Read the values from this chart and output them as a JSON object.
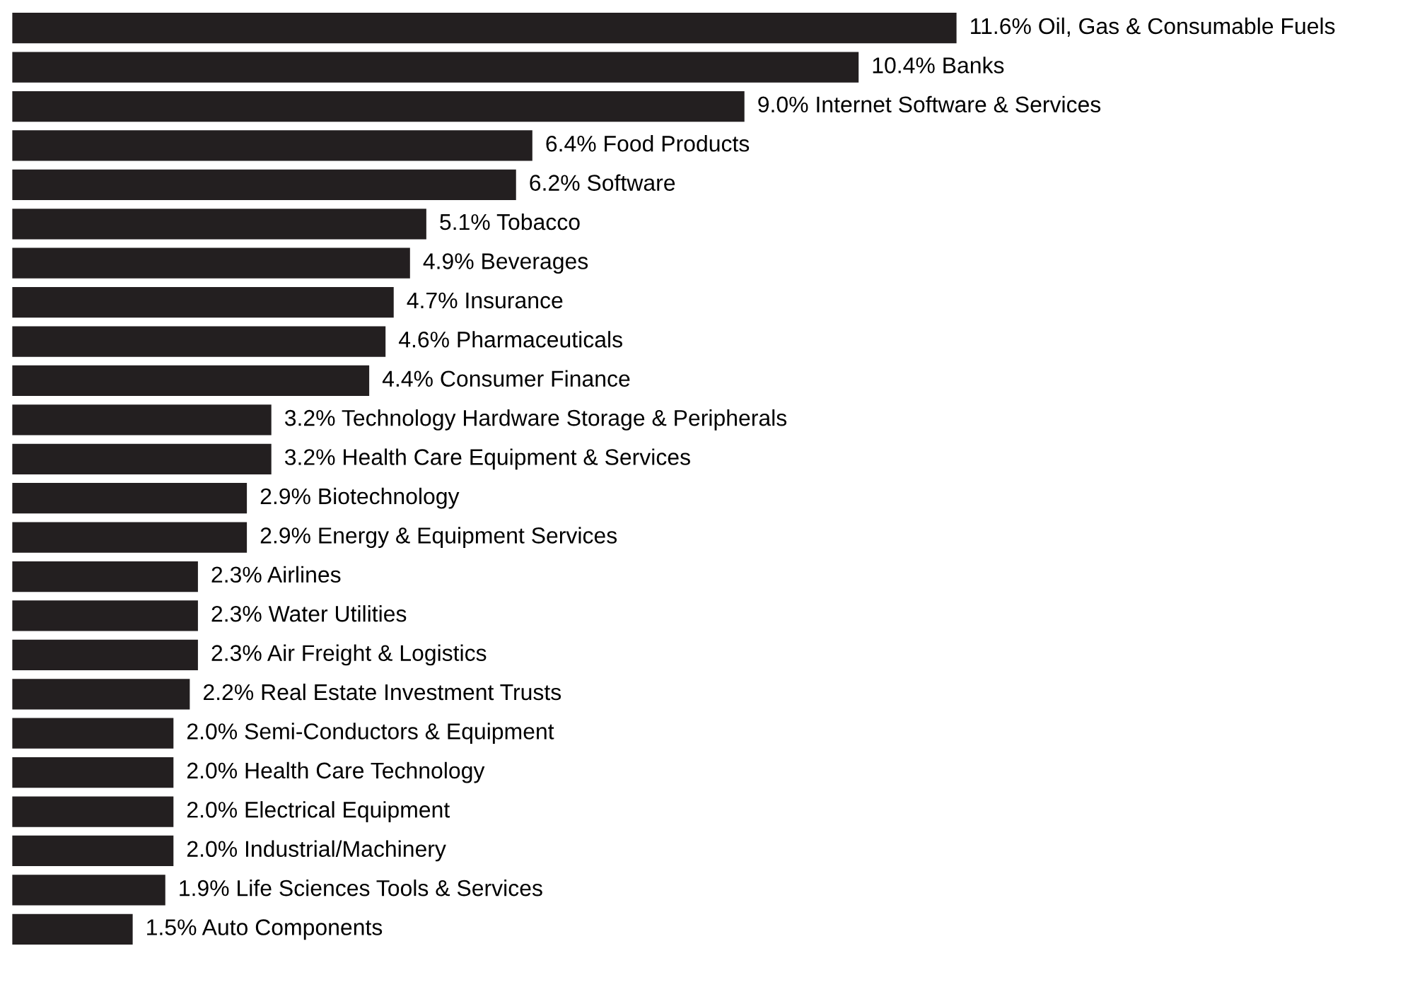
{
  "chart_data": {
    "type": "bar",
    "orientation": "horizontal",
    "categories": [
      null,
      null,
      null,
      null,
      null,
      null,
      null,
      null,
      null,
      null,
      null,
      null,
      null,
      null,
      null,
      null,
      null,
      null,
      null,
      null,
      null,
      null,
      null,
      null
    ],
    "values": [
      11.6,
      10.4,
      9.0,
      6.4,
      6.2,
      5.1,
      4.9,
      4.7,
      4.6,
      4.4,
      3.2,
      3.2,
      2.9,
      2.9,
      2.3,
      2.3,
      2.3,
      2.2,
      2.0,
      2.0,
      2.0,
      2.0,
      1.9,
      1.5
    ],
    "value_labels": [
      "11.6% Oil, Gas & Consumable Fuels",
      "10.4% Banks",
      "9.0% Internet Software & Services",
      "6.4% Food Products",
      "6.2% Software",
      "5.1% Tobacco",
      "4.9% Beverages",
      "4.7% Insurance",
      "4.6% Pharmaceuticals",
      "4.4% Consumer Finance",
      "3.2% Technology Hardware Storage & Peripherals",
      "3.2% Health Care Equipment & Services",
      "2.9% Biotechnology",
      "2.9% Energy & Equipment Services",
      "2.3% Airlines",
      "2.3% Water Utilities",
      "2.3% Air Freight & Logistics",
      "2.2% Real Estate Investment Trusts",
      "2.0% Semi-Conductors & Equipment",
      "2.0% Health Care Technology",
      "2.0% Electrical Equipment",
      "2.0% Industrial/Machinery",
      "1.9% Life Sciences Tools & Services",
      "1.5% Auto Components"
    ],
    "color": "#231f20",
    "tick_labels": false,
    "legend": false
  }
}
